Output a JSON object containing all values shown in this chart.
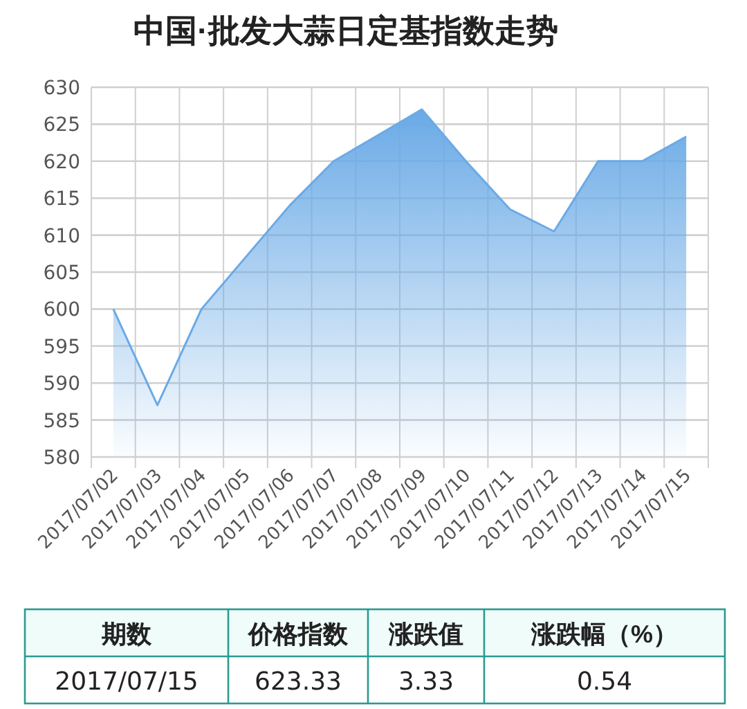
{
  "chart_data": [
    {
      "type": "area",
      "title": "中国·批发大蒜日定基指数走势",
      "categories": [
        "2017/07/02",
        "2017/07/03",
        "2017/07/04",
        "2017/07/05",
        "2017/07/06",
        "2017/07/07",
        "2017/07/08",
        "2017/07/09",
        "2017/07/10",
        "2017/07/11",
        "2017/07/12",
        "2017/07/13",
        "2017/07/14",
        "2017/07/15"
      ],
      "series": [
        {
          "color": "#6aaae6",
          "values": [
            600,
            587,
            600,
            607,
            614,
            620,
            623.5,
            627,
            620,
            613.5,
            610.5,
            620,
            620,
            623.33
          ]
        }
      ],
      "ylim": [
        580,
        630
      ],
      "yticks": [
        580,
        585,
        590,
        595,
        600,
        605,
        610,
        615,
        620,
        625,
        630
      ],
      "grid": true
    },
    {
      "type": "other",
      "categories": [
        "期数",
        "价格指数",
        "涨跌值",
        "涨跌幅（%）"
      ],
      "annotations": [
        "2017/07/15",
        "623.33",
        "3.33",
        "0.54"
      ]
    }
  ]
}
